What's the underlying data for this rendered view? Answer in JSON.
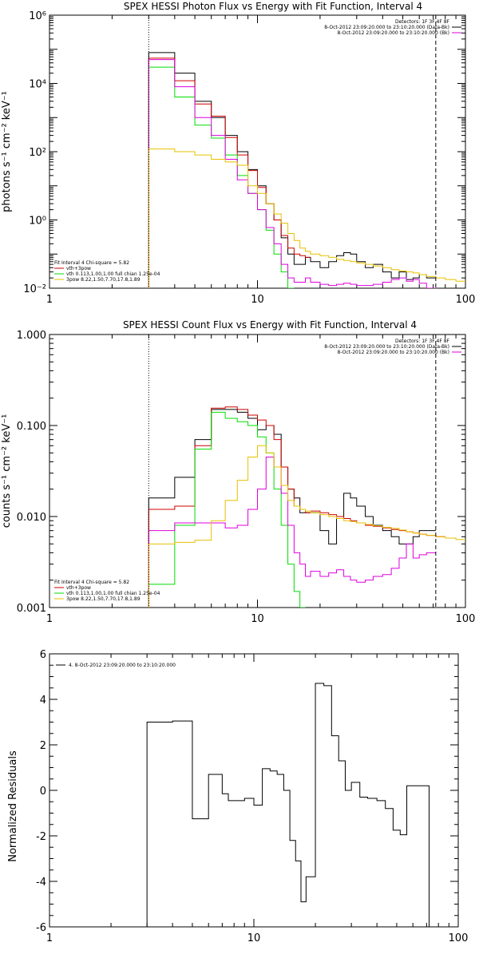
{
  "colors": {
    "black": "#000000",
    "red": "#cc0000",
    "green": "#00dd00",
    "yellow": "#e8c000",
    "magenta": "#dd00dd"
  },
  "chart_data": [
    {
      "type": "line",
      "step": true,
      "title": "SPEX HESSI Photon Flux vs Energy with Fit Function, Interval 4",
      "ylabel": "photons s⁻¹ cm⁻² keV⁻¹",
      "xscale": "log",
      "yscale": "log",
      "xlim": [
        1,
        100
      ],
      "ylim": [
        0.01,
        1000000
      ],
      "xticks": [
        {
          "v": 1,
          "t": "1"
        },
        {
          "v": 10,
          "t": "10"
        },
        {
          "v": 100,
          "t": "100"
        }
      ],
      "yticks": [
        {
          "v": 0.01,
          "t": "10⁻²"
        },
        {
          "v": 1,
          "t": "10⁰"
        },
        {
          "v": 100,
          "t": "10²"
        },
        {
          "v": 10000,
          "t": "10⁴"
        },
        {
          "v": 1000000,
          "t": "10⁶"
        }
      ],
      "vlines": [
        {
          "x": 3,
          "style": "dotted"
        },
        {
          "x": 72,
          "style": "dashed"
        }
      ],
      "legend_right": [
        "Detectors: 1F 3F 4F 8F",
        "8-Oct-2012 23:09:20.000 to 23:10:20.000 (Data-Bk)",
        "8-Oct-2012 23:09:20.000 to 23:10:20.000 (Bk)"
      ],
      "legend_left": [
        "Fit Interval  4   Chi-square = 5.82",
        "vth+3pow",
        "vth 0.113,1.00,1.00  full chian 1.25e-04",
        "3pow  8.22,1.50,7.70,17.8,1.89"
      ],
      "edges": [
        3,
        4,
        5,
        6,
        7,
        8,
        9,
        10,
        11,
        12,
        13,
        14,
        15,
        16,
        17,
        18,
        20,
        22,
        24,
        26,
        28,
        30,
        33,
        36,
        40,
        44,
        48,
        52,
        56,
        60,
        65,
        72,
        80,
        90,
        100
      ],
      "series": [
        {
          "color": "black",
          "values": [
            80000,
            20000,
            3000,
            1000,
            300,
            100,
            30,
            10,
            3,
            1,
            0.3,
            0.1,
            0.05,
            0.05,
            0.08,
            0.06,
            0.04,
            0.06,
            0.09,
            0.11,
            0.1,
            0.06,
            0.04,
            0.05,
            0.03,
            0.02,
            0.03,
            0.018,
            0.02,
            0.025,
            0.02
          ]
        },
        {
          "color": "red",
          "values": [
            55000,
            12000,
            2500,
            1100,
            260,
            80,
            28,
            9,
            3,
            1,
            0.35,
            0.15,
            0.1,
            0.09,
            0.08
          ]
        },
        {
          "color": "green",
          "values": [
            30000,
            4000,
            600,
            250,
            80,
            20,
            6,
            2,
            0.5,
            0.1,
            0.03,
            0.01
          ]
        },
        {
          "color": "magenta",
          "values": [
            50000,
            8000,
            1000,
            300,
            60,
            15,
            6,
            2,
            0.6,
            0.2,
            0.05,
            0.02,
            0.015,
            0.015,
            0.02,
            0.015,
            0.013,
            0.012,
            0.013,
            0.014,
            0.013,
            0.012,
            0.012,
            0.013,
            0.015,
            0.018,
            0.02,
            0.016,
            0.018,
            0.014,
            0.01
          ]
        },
        {
          "color": "yellow",
          "values": [
            120,
            100,
            80,
            60,
            50,
            40,
            10,
            6,
            3,
            1.5,
            0.8,
            0.4,
            0.25,
            0.15,
            0.12,
            0.1,
            0.09,
            0.08,
            0.07,
            0.065,
            0.06,
            0.055,
            0.05,
            0.045,
            0.04,
            0.035,
            0.032,
            0.03,
            0.028,
            0.025,
            0.022,
            0.02,
            0.018,
            0.016
          ]
        }
      ]
    },
    {
      "type": "line",
      "step": true,
      "title": "SPEX HESSI Count Flux vs Energy with Fit Function, Interval 4",
      "ylabel": "counts s⁻¹ cm⁻² keV⁻¹",
      "xscale": "log",
      "yscale": "log",
      "xlim": [
        1,
        100
      ],
      "ylim": [
        0.001,
        1.0
      ],
      "xticks": [
        {
          "v": 1,
          "t": "1"
        },
        {
          "v": 10,
          "t": "10"
        },
        {
          "v": 100,
          "t": "100"
        }
      ],
      "yticks": [
        {
          "v": 0.001,
          "t": "0.001"
        },
        {
          "v": 0.01,
          "t": "0.010"
        },
        {
          "v": 0.1,
          "t": "0.100"
        },
        {
          "v": 1,
          "t": "1.000"
        }
      ],
      "vlines": [
        {
          "x": 3,
          "style": "dotted"
        },
        {
          "x": 72,
          "style": "dashed"
        }
      ],
      "legend_right": [
        "Detectors: 1F 3F 4F 8F",
        "8-Oct-2012 23:09:20.000 to 23:10:20.000 (Data-Bk)",
        "8-Oct-2012 23:09:20.000 to 23:10:20.000 (Bk)"
      ],
      "legend_left": [
        "Fit Interval  4   Chi-square = 5.82",
        "vth+3pow",
        "vth 0.113,1.00,1.00  full chian 1.25e-04",
        "3pow  8.22,1.50,7.70,17.8,1.89"
      ],
      "edges": [
        3,
        4,
        5,
        6,
        7,
        8,
        9,
        10,
        11,
        12,
        13,
        14,
        15,
        16,
        17,
        18,
        20,
        22,
        24,
        26,
        28,
        30,
        33,
        36,
        40,
        44,
        48,
        52,
        56,
        60,
        65,
        72,
        80,
        90,
        100
      ],
      "series": [
        {
          "color": "black",
          "values": [
            0.016,
            0.027,
            0.07,
            0.15,
            0.15,
            0.14,
            0.12,
            0.09,
            0.1,
            0.08,
            0.035,
            0.02,
            0.016,
            0.011,
            0.011,
            0.011,
            0.007,
            0.005,
            0.01,
            0.018,
            0.016,
            0.013,
            0.01,
            0.008,
            0.007,
            0.006,
            0.005,
            0.005,
            0.006,
            0.007,
            0.007
          ]
        },
        {
          "color": "red",
          "values": [
            0.012,
            0.013,
            0.06,
            0.155,
            0.16,
            0.15,
            0.13,
            0.115,
            0.1,
            0.07,
            0.035,
            0.02,
            0.013,
            0.012,
            0.011,
            0.0115,
            0.011,
            0.0105,
            0.01,
            0.0095,
            0.009,
            0.0085,
            0.008,
            0.0078,
            0.0075,
            0.0072,
            0.007,
            0.0068,
            0.0066,
            0.0064,
            0.0062,
            0.006
          ]
        },
        {
          "color": "green",
          "values": [
            0.0018,
            0.008,
            0.055,
            0.14,
            0.12,
            0.11,
            0.1,
            0.075,
            0.05,
            0.02,
            0.008,
            0.003,
            0.0015,
            0.001
          ]
        },
        {
          "color": "magenta",
          "values": [
            0.007,
            0.0085,
            0.0085,
            0.0085,
            0.0075,
            0.008,
            0.012,
            0.02,
            0.045,
            0.035,
            0.018,
            0.008,
            0.004,
            0.003,
            0.0022,
            0.0025,
            0.0022,
            0.0024,
            0.0026,
            0.0022,
            0.002,
            0.0019,
            0.002,
            0.0022,
            0.0023,
            0.0027,
            0.0035,
            0.005,
            0.0035,
            0.0038,
            0.004
          ]
        },
        {
          "color": "yellow",
          "values": [
            0.005,
            0.0052,
            0.0055,
            0.009,
            0.015,
            0.025,
            0.045,
            0.06,
            0.05,
            0.035,
            0.022,
            0.015,
            0.013,
            0.012,
            0.0115,
            0.011,
            0.0105,
            0.01,
            0.0095,
            0.009,
            0.0088,
            0.0085,
            0.0082,
            0.0079,
            0.0076,
            0.0074,
            0.0071,
            0.0068,
            0.0066,
            0.0064,
            0.0062,
            0.006,
            0.0058,
            0.0056
          ]
        }
      ]
    },
    {
      "type": "line",
      "step": true,
      "title": "",
      "ylabel": "Normalized Residuals",
      "xscale": "log",
      "yscale": "linear",
      "xlim": [
        1,
        100
      ],
      "ylim": [
        -6,
        6
      ],
      "xticks": [
        {
          "v": 1,
          "t": "1"
        },
        {
          "v": 10,
          "t": "10"
        },
        {
          "v": 100,
          "t": "100"
        }
      ],
      "yticks": [
        {
          "v": -6,
          "t": "-6"
        },
        {
          "v": -4,
          "t": "-4"
        },
        {
          "v": -2,
          "t": "-2"
        },
        {
          "v": 0,
          "t": "0"
        },
        {
          "v": 2,
          "t": "2"
        },
        {
          "v": 4,
          "t": "4"
        },
        {
          "v": 6,
          "t": "6"
        }
      ],
      "legend_top": "4.  8-Oct-2012 23:09:20.000 to 23:10:20.000",
      "edges": [
        3,
        4,
        5,
        5.5,
        6,
        7,
        7.5,
        8,
        9,
        10,
        11,
        12,
        13,
        14,
        15,
        16,
        17,
        18,
        20,
        22,
        24,
        26,
        28,
        30,
        33,
        36,
        40,
        44,
        48,
        52,
        56,
        60,
        65,
        72
      ],
      "series": [
        {
          "color": "black",
          "values": [
            3.0,
            3.05,
            -1.25,
            -1.25,
            0.7,
            -0.15,
            -0.45,
            -0.45,
            -0.35,
            -0.65,
            0.95,
            0.85,
            0.7,
            0.0,
            -2.2,
            -3.1,
            -4.9,
            -3.8,
            4.7,
            4.6,
            2.4,
            1.3,
            0.0,
            0.35,
            -0.3,
            -0.35,
            -0.45,
            -0.8,
            -1.75,
            -1.95,
            0.2,
            0.2,
            0.2
          ]
        }
      ]
    }
  ]
}
